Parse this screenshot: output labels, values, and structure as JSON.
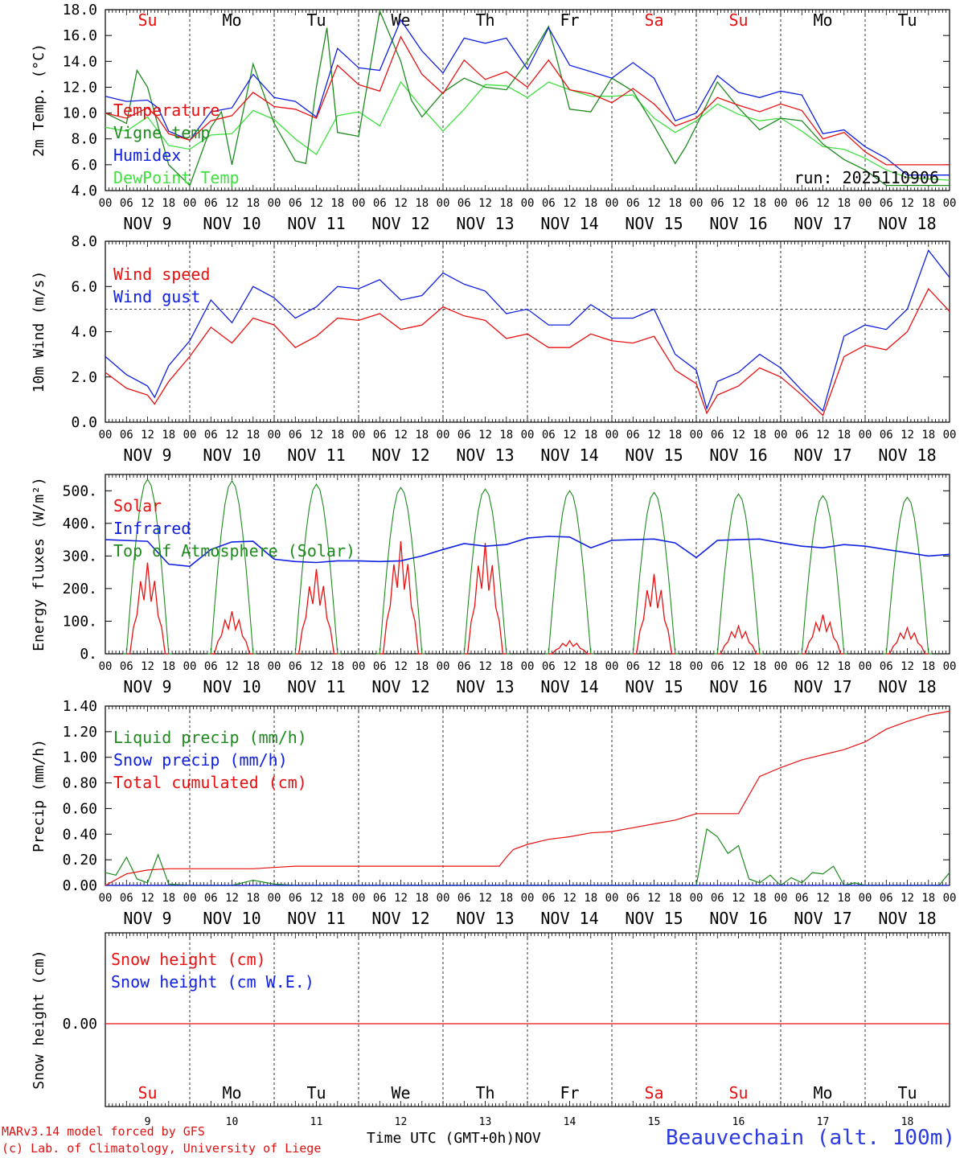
{
  "colors": {
    "red": "#e81010",
    "green": "#1e8a1e",
    "blue": "#1020e0",
    "lightgreen": "#40e040",
    "weekend": "#e81010",
    "weekday": "#000000"
  },
  "chart_data": [
    {
      "type": "line",
      "ylabel": "2m Temp. (°C)",
      "ylim": [
        4.0,
        18.0
      ],
      "yticks": [
        4.0,
        6.0,
        8.0,
        10.0,
        12.0,
        14.0,
        16.0,
        18.0
      ],
      "ytick_labels": [
        "4.0",
        "6.0",
        "8.0",
        "10.0",
        "12.0",
        "14.0",
        "16.0",
        "18.0"
      ],
      "annotation": "run: 2025110906",
      "series": [
        {
          "name": "Temperature",
          "color": "red",
          "x": [
            0,
            6,
            12,
            15,
            18,
            24,
            30,
            36,
            42,
            48,
            54,
            60,
            66,
            72,
            78,
            84,
            90,
            96,
            102,
            108,
            114,
            120,
            126,
            132,
            138,
            144,
            150,
            156,
            162,
            168,
            174,
            180,
            186,
            192,
            198,
            204,
            210,
            216,
            222,
            228,
            234,
            240
          ],
          "y": [
            10.0,
            9.6,
            10.4,
            9.6,
            8.4,
            7.9,
            9.4,
            9.8,
            11.6,
            10.5,
            10.3,
            9.6,
            13.7,
            12.2,
            11.7,
            15.9,
            13.0,
            11.5,
            14.1,
            12.6,
            13.2,
            12.0,
            14.1,
            11.8,
            11.5,
            10.8,
            11.9,
            10.7,
            9.0,
            9.6,
            11.2,
            10.6,
            10.1,
            10.7,
            10.2,
            8.0,
            8.5,
            7.0,
            6.0,
            6.0,
            6.0,
            6.0
          ]
        },
        {
          "name": "Vigne temp",
          "color": "green",
          "x": [
            0,
            6,
            9,
            12,
            15,
            18,
            24,
            30,
            33,
            36,
            42,
            48,
            54,
            57,
            60,
            63,
            66,
            72,
            78,
            84,
            87,
            90,
            96,
            102,
            108,
            114,
            120,
            126,
            132,
            138,
            144,
            150,
            156,
            162,
            165,
            168,
            174,
            180,
            186,
            192,
            198,
            204,
            210,
            216,
            222,
            228,
            234,
            240
          ],
          "y": [
            10.0,
            9.2,
            13.3,
            12.0,
            9.0,
            6.0,
            4.4,
            8.9,
            10.1,
            6.0,
            13.8,
            9.2,
            6.3,
            6.1,
            12.0,
            16.6,
            8.5,
            8.2,
            17.9,
            14.0,
            11.0,
            9.7,
            11.6,
            12.7,
            12.0,
            11.8,
            14.0,
            16.7,
            10.3,
            10.1,
            12.7,
            11.7,
            9.0,
            6.1,
            7.4,
            9.0,
            12.4,
            10.4,
            8.7,
            9.6,
            9.4,
            7.6,
            6.4,
            5.6,
            4.4,
            4.4,
            4.4,
            4.4
          ]
        },
        {
          "name": "Humidex",
          "color": "blue",
          "x": [
            0,
            6,
            12,
            15,
            18,
            24,
            30,
            36,
            42,
            48,
            54,
            60,
            66,
            72,
            78,
            84,
            90,
            96,
            102,
            108,
            114,
            120,
            126,
            132,
            138,
            144,
            150,
            156,
            162,
            168,
            174,
            180,
            186,
            192,
            198,
            204,
            210,
            216,
            222,
            228,
            234,
            240
          ],
          "y": [
            11.3,
            10.9,
            11.0,
            10.4,
            8.6,
            7.9,
            10.1,
            10.4,
            13.0,
            11.2,
            10.9,
            9.7,
            15.0,
            13.5,
            13.3,
            17.2,
            14.8,
            13.1,
            15.8,
            15.4,
            15.8,
            13.4,
            16.6,
            13.7,
            13.2,
            12.7,
            13.9,
            12.7,
            9.4,
            10.0,
            12.9,
            11.6,
            11.2,
            11.7,
            11.4,
            8.4,
            8.7,
            7.4,
            6.5,
            5.2,
            5.2,
            5.2
          ]
        },
        {
          "name": "DewPoint Temp",
          "color": "lightgreen",
          "x": [
            0,
            6,
            12,
            18,
            24,
            30,
            36,
            42,
            48,
            54,
            60,
            66,
            72,
            78,
            84,
            90,
            96,
            102,
            108,
            114,
            120,
            126,
            132,
            138,
            144,
            150,
            156,
            162,
            168,
            174,
            180,
            186,
            192,
            198,
            204,
            210,
            216,
            222,
            228,
            234,
            240
          ],
          "y": [
            8.9,
            8.6,
            9.7,
            7.5,
            7.2,
            8.3,
            8.4,
            10.2,
            9.5,
            8.0,
            6.8,
            9.8,
            10.1,
            9.0,
            12.4,
            10.4,
            8.6,
            10.3,
            12.2,
            12.1,
            11.2,
            12.4,
            11.8,
            11.3,
            11.3,
            11.4,
            9.6,
            8.5,
            9.4,
            10.7,
            9.9,
            9.4,
            9.6,
            8.6,
            7.4,
            7.2,
            6.5,
            5.6,
            5.0,
            4.9,
            4.8
          ]
        }
      ]
    },
    {
      "type": "line",
      "ylabel": "10m Wind (m/s)",
      "ylim": [
        0.0,
        8.0
      ],
      "yticks": [
        0.0,
        2.0,
        4.0,
        6.0,
        8.0
      ],
      "ytick_labels": [
        "0.0",
        "2.0",
        "4.0",
        "6.0",
        "8.0"
      ],
      "reference_line": 5.0,
      "series": [
        {
          "name": "Wind speed",
          "color": "red",
          "x": [
            0,
            6,
            12,
            14,
            18,
            24,
            30,
            36,
            42,
            48,
            54,
            60,
            66,
            72,
            78,
            84,
            90,
            96,
            102,
            108,
            114,
            120,
            126,
            132,
            138,
            144,
            150,
            156,
            162,
            168,
            171,
            174,
            180,
            186,
            192,
            198,
            204,
            210,
            216,
            222,
            228,
            234,
            240
          ],
          "y": [
            2.2,
            1.5,
            1.2,
            0.8,
            1.8,
            2.9,
            4.2,
            3.5,
            4.6,
            4.3,
            3.3,
            3.8,
            4.6,
            4.5,
            4.8,
            4.1,
            4.3,
            5.1,
            4.7,
            4.5,
            3.7,
            3.9,
            3.3,
            3.3,
            3.9,
            3.6,
            3.5,
            3.8,
            2.3,
            1.7,
            0.4,
            1.2,
            1.6,
            2.4,
            2.0,
            1.2,
            0.3,
            2.9,
            3.4,
            3.2,
            4.0,
            5.9,
            4.9
          ]
        },
        {
          "name": "Wind gust",
          "color": "blue",
          "x": [
            0,
            6,
            12,
            14,
            18,
            24,
            30,
            36,
            42,
            48,
            54,
            60,
            66,
            72,
            78,
            84,
            90,
            96,
            102,
            108,
            114,
            120,
            126,
            132,
            138,
            144,
            150,
            156,
            162,
            168,
            171,
            174,
            180,
            186,
            192,
            198,
            204,
            210,
            216,
            222,
            228,
            234,
            240
          ],
          "y": [
            2.9,
            2.1,
            1.6,
            1.1,
            2.5,
            3.6,
            5.4,
            4.4,
            6.0,
            5.5,
            4.6,
            5.1,
            6.0,
            5.9,
            6.3,
            5.4,
            5.6,
            6.6,
            6.1,
            5.8,
            4.8,
            5.0,
            4.3,
            4.3,
            5.2,
            4.6,
            4.6,
            5.0,
            3.0,
            2.3,
            0.6,
            1.8,
            2.2,
            3.0,
            2.4,
            1.4,
            0.5,
            3.8,
            4.3,
            4.1,
            5.0,
            7.6,
            6.4
          ]
        }
      ]
    },
    {
      "type": "line",
      "ylabel": "Energy fluxes (W/m²)",
      "ylim": [
        0,
        550
      ],
      "yticks": [
        0,
        100,
        200,
        300,
        400,
        500
      ],
      "ytick_labels": [
        "0.",
        "100.",
        "200.",
        "300.",
        "400.",
        "500."
      ],
      "series": [
        {
          "name": "Solar",
          "color": "red",
          "day_peaks": [
            280,
            130,
            260,
            345,
            340,
            40,
            245,
            85,
            120,
            80
          ]
        },
        {
          "name": "Infrared",
          "color": "blue",
          "x": [
            0,
            12,
            18,
            24,
            30,
            36,
            42,
            48,
            54,
            60,
            66,
            72,
            78,
            84,
            90,
            96,
            102,
            108,
            114,
            120,
            126,
            132,
            138,
            144,
            150,
            156,
            162,
            168,
            174,
            180,
            186,
            192,
            198,
            204,
            210,
            216,
            222,
            228,
            234,
            240
          ],
          "y": [
            350,
            345,
            275,
            268,
            320,
            343,
            345,
            290,
            283,
            280,
            285,
            285,
            283,
            285,
            300,
            320,
            338,
            330,
            335,
            355,
            360,
            358,
            325,
            348,
            350,
            352,
            340,
            295,
            348,
            350,
            352,
            340,
            330,
            325,
            335,
            330,
            320,
            310,
            300,
            305
          ]
        },
        {
          "name": "Top of Atmosphere (Solar)",
          "color": "green",
          "day_peaks": [
            535,
            530,
            520,
            510,
            505,
            500,
            495,
            490,
            485,
            480
          ]
        }
      ]
    },
    {
      "type": "line",
      "ylabel": "Precip (mm/h)",
      "ylim": [
        0.0,
        1.4
      ],
      "yticks": [
        0.0,
        0.2,
        0.4,
        0.6,
        0.8,
        1.0,
        1.2,
        1.4
      ],
      "ytick_labels": [
        "0.00",
        "0.20",
        "0.40",
        "0.60",
        "0.80",
        "1.00",
        "1.20",
        "1.40"
      ],
      "series": [
        {
          "name": "Liquid precip (mm/h)",
          "color": "green",
          "x": [
            0,
            3,
            6,
            9,
            12,
            15,
            18,
            24,
            30,
            36,
            42,
            48,
            54,
            60,
            66,
            72,
            78,
            84,
            90,
            96,
            102,
            108,
            114,
            120,
            126,
            132,
            138,
            144,
            150,
            156,
            162,
            168,
            171,
            174,
            177,
            180,
            183,
            186,
            189,
            192,
            195,
            198,
            201,
            204,
            207,
            210,
            213,
            216,
            219,
            222,
            225,
            228,
            231,
            234,
            237,
            240
          ],
          "y": [
            0.1,
            0.08,
            0.22,
            0.05,
            0.02,
            0.24,
            0.01,
            0.0,
            0.0,
            0.0,
            0.04,
            0.01,
            0.0,
            0.0,
            0.0,
            0.0,
            0.0,
            0.0,
            0.0,
            0.0,
            0.0,
            0.0,
            0.0,
            0.0,
            0.0,
            0.0,
            0.0,
            0.0,
            0.0,
            0.0,
            0.0,
            0.0,
            0.44,
            0.38,
            0.25,
            0.31,
            0.05,
            0.02,
            0.08,
            0.0,
            0.06,
            0.02,
            0.1,
            0.09,
            0.15,
            0.0,
            0.02,
            0.0,
            0.0,
            0.0,
            0.0,
            0.0,
            0.0,
            0.0,
            0.0,
            0.1
          ]
        },
        {
          "name": "Snow precip (mm/h)",
          "color": "blue",
          "x": [
            0,
            240
          ],
          "y": [
            0.0,
            0.0
          ]
        },
        {
          "name": "Total cumulated (cm)",
          "color": "red",
          "x": [
            0,
            6,
            12,
            18,
            24,
            30,
            36,
            42,
            48,
            54,
            60,
            66,
            72,
            78,
            84,
            90,
            96,
            102,
            108,
            112,
            114,
            116,
            120,
            126,
            132,
            138,
            144,
            150,
            156,
            162,
            168,
            174,
            180,
            186,
            192,
            198,
            204,
            210,
            216,
            222,
            228,
            234,
            240
          ],
          "y": [
            0.0,
            0.09,
            0.12,
            0.13,
            0.13,
            0.13,
            0.13,
            0.13,
            0.14,
            0.15,
            0.15,
            0.15,
            0.15,
            0.15,
            0.15,
            0.15,
            0.15,
            0.15,
            0.15,
            0.15,
            0.22,
            0.28,
            0.32,
            0.36,
            0.38,
            0.41,
            0.42,
            0.45,
            0.48,
            0.51,
            0.56,
            0.56,
            0.56,
            0.85,
            0.92,
            0.98,
            1.02,
            1.06,
            1.12,
            1.22,
            1.28,
            1.33,
            1.36
          ]
        }
      ]
    },
    {
      "type": "line",
      "ylabel": "Snow height (cm)",
      "yticks": [
        0.0
      ],
      "ytick_labels": [
        "0.00"
      ],
      "series": [
        {
          "name": "Snow height (cm)",
          "color": "red",
          "x": [
            0,
            240
          ],
          "y": [
            0.0,
            0.0
          ]
        },
        {
          "name": "Snow height (cm W.E.)",
          "color": "blue",
          "x": [
            0,
            240
          ],
          "y": [
            0.0,
            0.0
          ]
        }
      ]
    }
  ],
  "time_axis": {
    "xlabel": "Time UTC (GMT+0h)",
    "month": "NOV",
    "hour_labels": [
      "00",
      "06",
      "12",
      "18"
    ],
    "end_label": "00",
    "date_labels": [
      "NOV  9",
      "NOV 10",
      "NOV 11",
      "NOV 12",
      "NOV 13",
      "NOV 14",
      "NOV 15",
      "NOV 16",
      "NOV 17",
      "NOV 18"
    ],
    "day_numbers": [
      "9",
      "10",
      "11",
      "12",
      "13",
      "14",
      "15",
      "16",
      "17",
      "18"
    ],
    "weekdays": [
      "Su",
      "Mo",
      "Tu",
      "We",
      "Th",
      "Fr",
      "Sa",
      "Su",
      "Mo",
      "Tu"
    ],
    "weekend_flags": [
      true,
      false,
      false,
      false,
      false,
      false,
      true,
      true,
      false,
      false
    ]
  },
  "footer": {
    "credit_line1": "MARv3.14 model forced by GFS",
    "credit_line2": "(c) Lab. of Climatology, University of Liege",
    "station": "Beauvechain (alt. 100m)"
  }
}
